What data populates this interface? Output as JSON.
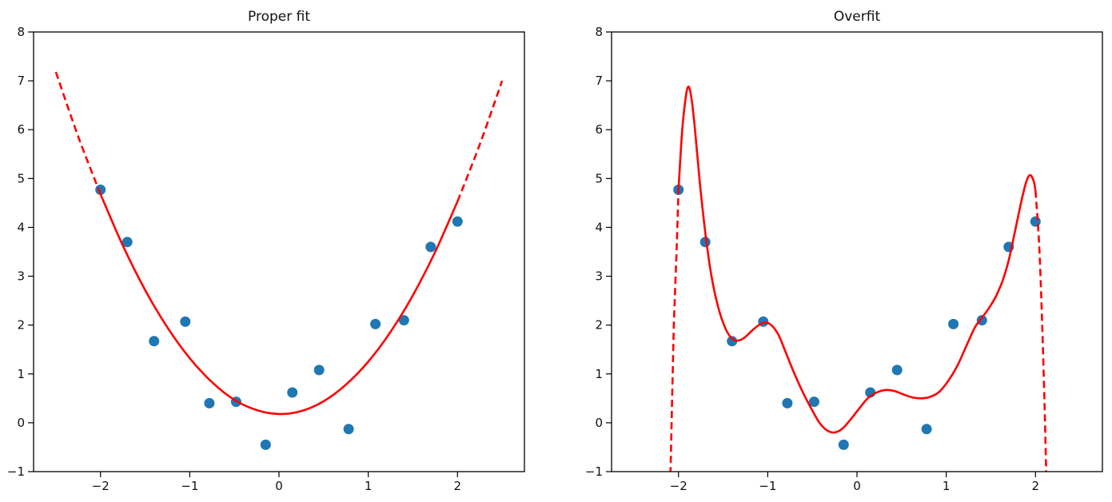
{
  "page": {
    "background": "#ffffff"
  },
  "chart_data": [
    {
      "type": "scatter",
      "title": "Proper fit",
      "xlim": [
        -2.75,
        2.75
      ],
      "ylim": [
        -1,
        8
      ],
      "xticks": [
        -2,
        -1,
        0,
        1,
        2
      ],
      "yticks": [
        -1,
        0,
        1,
        2,
        3,
        4,
        5,
        6,
        7,
        8
      ],
      "grid": false,
      "legend": "none",
      "scatter": {
        "name": "data-points",
        "color": "#1f77b4",
        "points": [
          [
            -2.0,
            4.77
          ],
          [
            -1.7,
            3.7
          ],
          [
            -1.4,
            1.67
          ],
          [
            -1.05,
            2.07
          ],
          [
            -0.78,
            0.4
          ],
          [
            -0.48,
            0.43
          ],
          [
            -0.15,
            -0.45
          ],
          [
            0.15,
            0.62
          ],
          [
            0.45,
            1.08
          ],
          [
            0.78,
            -0.13
          ],
          [
            1.08,
            2.02
          ],
          [
            1.4,
            2.1
          ],
          [
            1.7,
            3.6
          ],
          [
            2.0,
            4.12
          ]
        ]
      },
      "curves": [
        {
          "name": "quadratic-fit-solid",
          "style": "solid",
          "color": "#ff0000",
          "points": [
            [
              -2.0,
              4.68
            ],
            [
              -1.75,
              3.63
            ],
            [
              -1.5,
              2.72
            ],
            [
              -1.25,
              1.95
            ],
            [
              -1.0,
              1.32
            ],
            [
              -0.75,
              0.83
            ],
            [
              -0.5,
              0.47
            ],
            [
              -0.25,
              0.26
            ],
            [
              0.0,
              0.18
            ],
            [
              0.25,
              0.24
            ],
            [
              0.5,
              0.44
            ],
            [
              0.75,
              0.78
            ],
            [
              1.0,
              1.25
            ],
            [
              1.25,
              1.86
            ],
            [
              1.5,
              2.61
            ],
            [
              1.75,
              3.5
            ],
            [
              2.0,
              4.53
            ]
          ]
        },
        {
          "name": "quadratic-fit-extrapolation-left",
          "style": "dashed",
          "color": "#ff0000",
          "points": [
            [
              -2.5,
              7.18
            ],
            [
              -2.25,
              5.86
            ],
            [
              -2.0,
              4.68
            ]
          ]
        },
        {
          "name": "quadratic-fit-extrapolation-right",
          "style": "dashed",
          "color": "#ff0000",
          "points": [
            [
              2.0,
              4.53
            ],
            [
              2.25,
              5.7
            ],
            [
              2.5,
              7.0
            ]
          ]
        }
      ]
    },
    {
      "type": "scatter",
      "title": "Overfit",
      "xlim": [
        -2.75,
        2.75
      ],
      "ylim": [
        -1,
        8
      ],
      "xticks": [
        -2,
        -1,
        0,
        1,
        2
      ],
      "yticks": [
        -1,
        0,
        1,
        2,
        3,
        4,
        5,
        6,
        7,
        8
      ],
      "grid": false,
      "legend": "none",
      "scatter": {
        "name": "data-points",
        "color": "#1f77b4",
        "points": [
          [
            -2.0,
            4.77
          ],
          [
            -1.7,
            3.7
          ],
          [
            -1.4,
            1.67
          ],
          [
            -1.05,
            2.07
          ],
          [
            -0.78,
            0.4
          ],
          [
            -0.48,
            0.43
          ],
          [
            -0.15,
            -0.45
          ],
          [
            0.15,
            0.62
          ],
          [
            0.45,
            1.08
          ],
          [
            0.78,
            -0.13
          ],
          [
            1.08,
            2.02
          ],
          [
            1.4,
            2.1
          ],
          [
            1.7,
            3.6
          ],
          [
            2.0,
            4.12
          ]
        ]
      },
      "curves": [
        {
          "name": "overfit-curve-solid",
          "style": "solid",
          "color": "#ff0000",
          "points": [
            [
              -2.0,
              4.77
            ],
            [
              -1.96,
              5.95
            ],
            [
              -1.92,
              6.65
            ],
            [
              -1.89,
              6.88
            ],
            [
              -1.86,
              6.7
            ],
            [
              -1.82,
              6.1
            ],
            [
              -1.76,
              4.9
            ],
            [
              -1.7,
              3.9
            ],
            [
              -1.63,
              3.0
            ],
            [
              -1.56,
              2.4
            ],
            [
              -1.49,
              2.0
            ],
            [
              -1.42,
              1.76
            ],
            [
              -1.35,
              1.68
            ],
            [
              -1.27,
              1.73
            ],
            [
              -1.18,
              1.88
            ],
            [
              -1.1,
              2.0
            ],
            [
              -1.03,
              2.05
            ],
            [
              -0.96,
              2.0
            ],
            [
              -0.88,
              1.8
            ],
            [
              -0.8,
              1.45
            ],
            [
              -0.7,
              1.0
            ],
            [
              -0.6,
              0.6
            ],
            [
              -0.5,
              0.25
            ],
            [
              -0.42,
              0.0
            ],
            [
              -0.34,
              -0.15
            ],
            [
              -0.26,
              -0.2
            ],
            [
              -0.17,
              -0.13
            ],
            [
              -0.08,
              0.05
            ],
            [
              0.02,
              0.28
            ],
            [
              0.12,
              0.5
            ],
            [
              0.22,
              0.62
            ],
            [
              0.32,
              0.67
            ],
            [
              0.42,
              0.65
            ],
            [
              0.52,
              0.58
            ],
            [
              0.62,
              0.52
            ],
            [
              0.72,
              0.5
            ],
            [
              0.82,
              0.53
            ],
            [
              0.92,
              0.63
            ],
            [
              1.02,
              0.85
            ],
            [
              1.12,
              1.15
            ],
            [
              1.22,
              1.55
            ],
            [
              1.32,
              1.95
            ],
            [
              1.4,
              2.15
            ],
            [
              1.48,
              2.35
            ],
            [
              1.56,
              2.6
            ],
            [
              1.64,
              2.95
            ],
            [
              1.71,
              3.4
            ],
            [
              1.78,
              4.0
            ],
            [
              1.85,
              4.6
            ],
            [
              1.9,
              4.95
            ],
            [
              1.94,
              5.07
            ],
            [
              1.98,
              4.95
            ],
            [
              2.0,
              4.75
            ]
          ]
        },
        {
          "name": "overfit-curve-dashed-left",
          "style": "dashed",
          "color": "#ff0000",
          "points": [
            [
              -2.09,
              -1.05
            ],
            [
              -2.07,
              0.6
            ],
            [
              -2.05,
              2.1
            ],
            [
              -2.02,
              3.6
            ],
            [
              -2.0,
              4.77
            ]
          ]
        },
        {
          "name": "overfit-curve-dashed-right",
          "style": "dashed",
          "color": "#ff0000",
          "points": [
            [
              2.0,
              4.75
            ],
            [
              2.04,
              3.7
            ],
            [
              2.07,
              2.3
            ],
            [
              2.1,
              0.5
            ],
            [
              2.12,
              -1.05
            ]
          ]
        }
      ]
    }
  ]
}
